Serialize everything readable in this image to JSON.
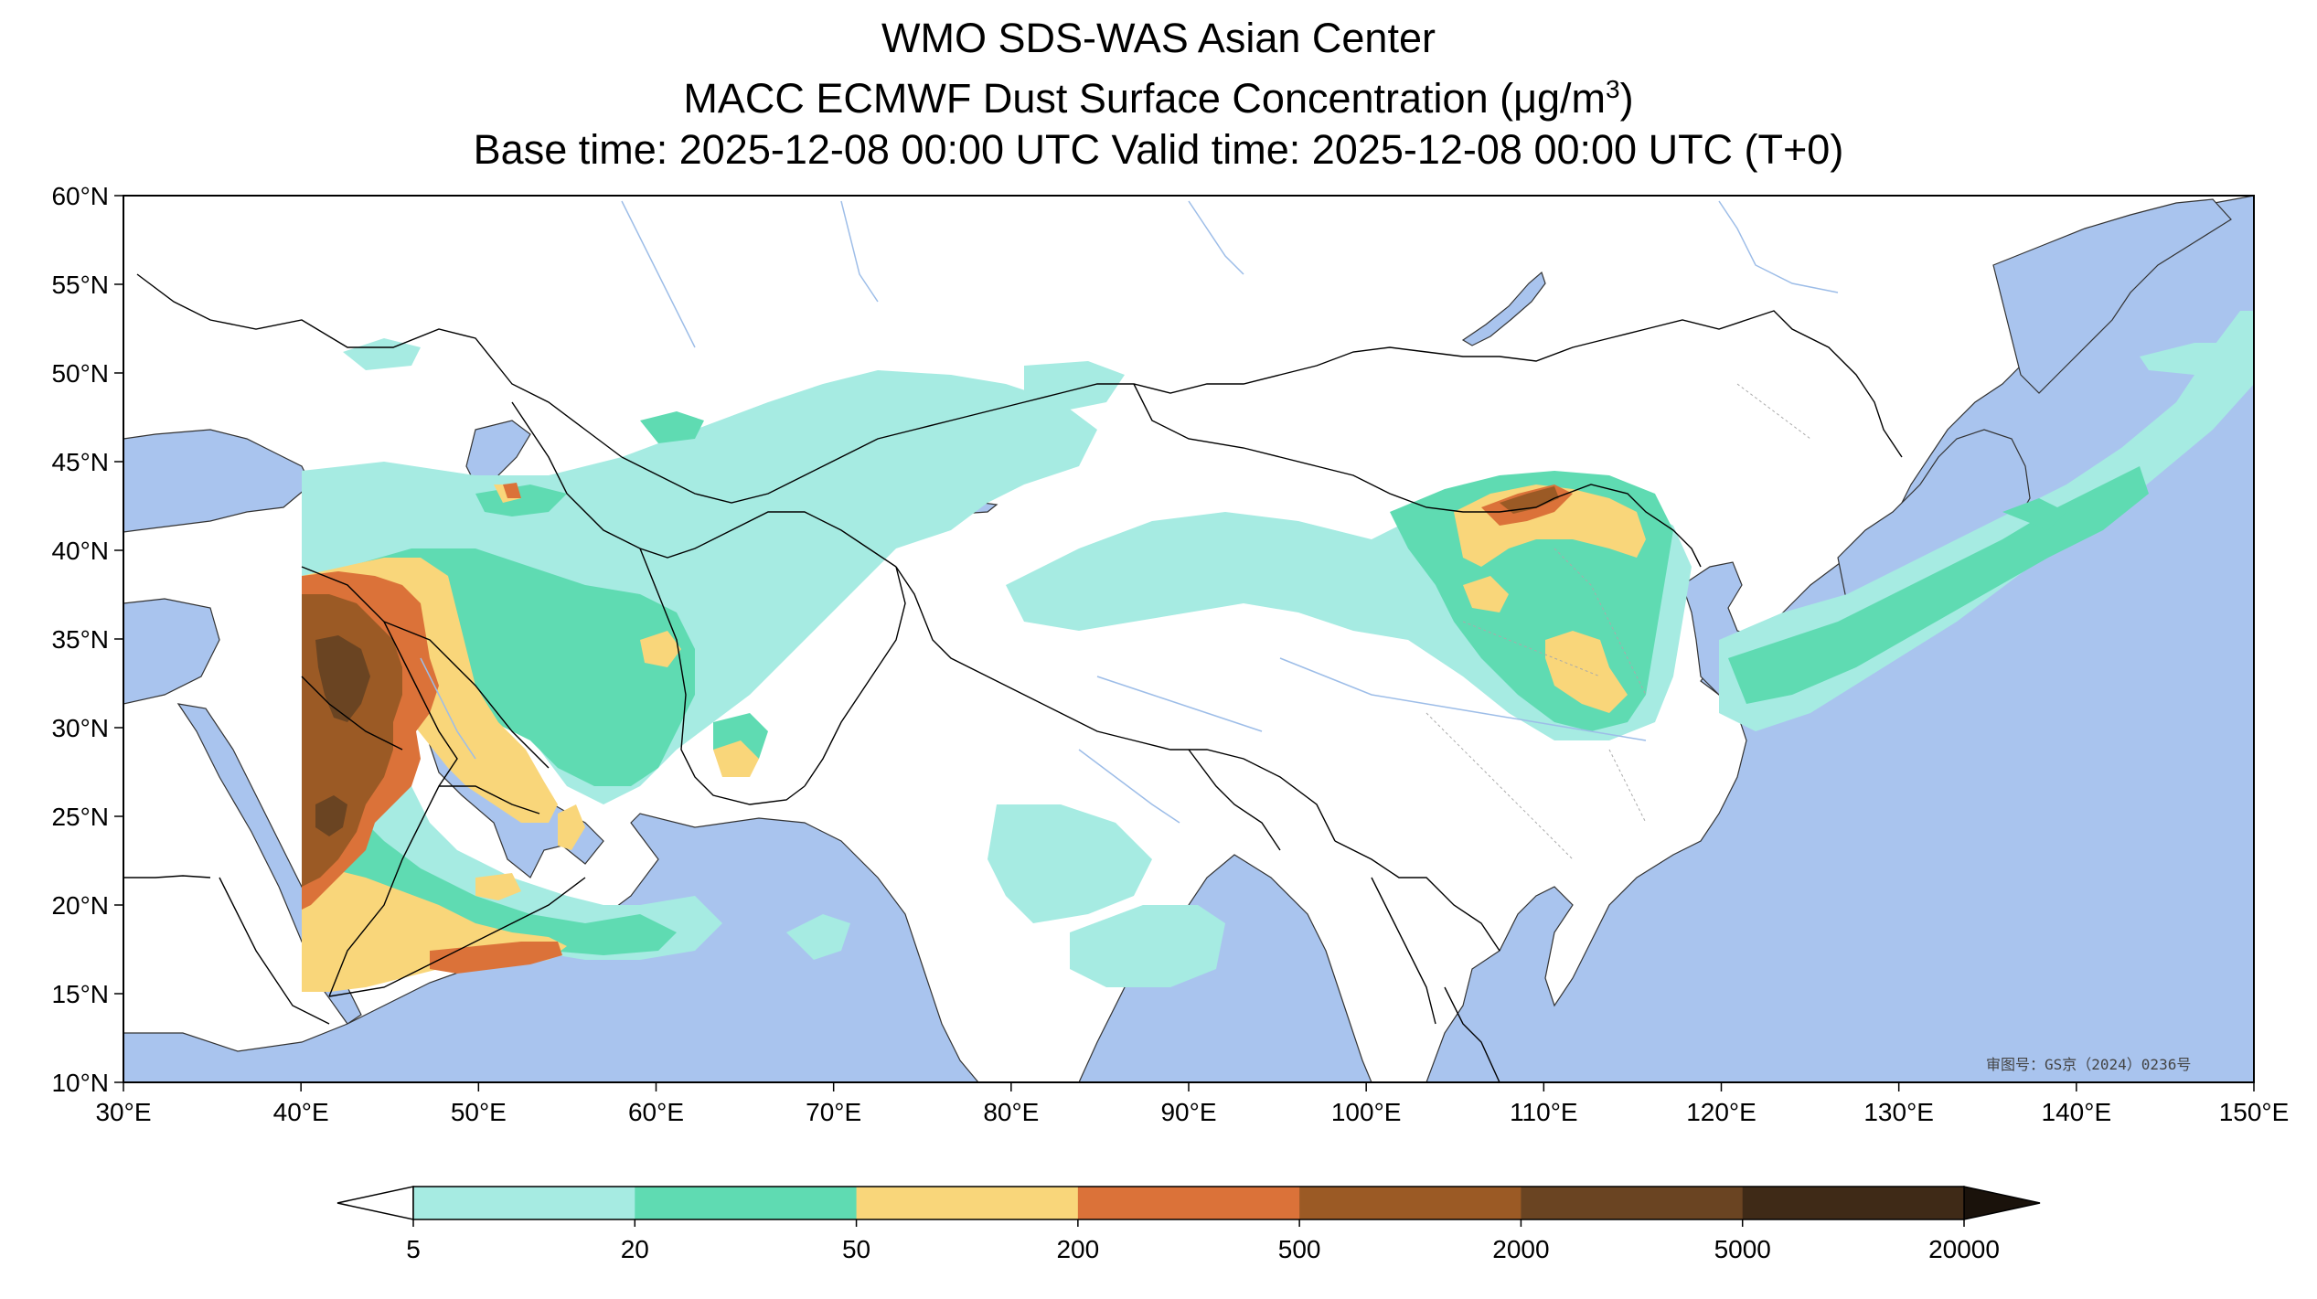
{
  "title": {
    "line1": "WMO SDS-WAS Asian Center",
    "line2_prefix": "MACC ECMWF Dust Surface Concentration (",
    "line2_unit": "μg/m",
    "line2_sup": "3",
    "line2_suffix": ")",
    "line3": "Base time: 2025-12-08 00:00 UTC Valid time: 2025-12-08 00:00 UTC (T+0)"
  },
  "map": {
    "lon_range": [
      30,
      150
    ],
    "lat_range": [
      10,
      60
    ],
    "x_ticks": [
      "30°E",
      "40°E",
      "50°E",
      "60°E",
      "70°E",
      "80°E",
      "90°E",
      "100°E",
      "110°E",
      "120°E",
      "130°E",
      "140°E",
      "150°E"
    ],
    "y_ticks": [
      "60°N",
      "55°N",
      "50°N",
      "45°N",
      "40°N",
      "35°N",
      "30°N",
      "25°N",
      "20°N",
      "15°N",
      "10°N"
    ],
    "approval_text": "审图号：GS京（2024）0236号",
    "colors": {
      "ocean": "#a9c4ee",
      "land": "#ffffff",
      "border": "#000000",
      "river": "#9dbde8"
    }
  },
  "colorbar": {
    "levels": [
      "5",
      "20",
      "50",
      "200",
      "500",
      "2000",
      "5000",
      "20000"
    ],
    "colors": [
      "#a6ebe2",
      "#5fdbb2",
      "#f9d67a",
      "#db7239",
      "#9b5a25",
      "#6a4422",
      "#3f2a17"
    ],
    "under_color": "#ffffff",
    "over_color": "#1a120b"
  }
}
